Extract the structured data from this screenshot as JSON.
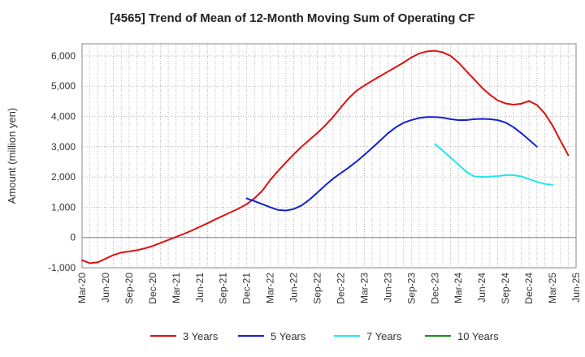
{
  "chart_data": {
    "type": "line",
    "title": "[4565]  Trend of Mean of 12-Month Moving Sum of Operating CF",
    "xlabel": "",
    "ylabel": "Amount (million yen)",
    "ylim": [
      -1000,
      6400
    ],
    "yticks": [
      -1000,
      0,
      1000,
      2000,
      3000,
      4000,
      5000,
      6000
    ],
    "ytick_labels": [
      "-1,000",
      "0",
      "1,000",
      "2,000",
      "3,000",
      "4,000",
      "5,000",
      "6,000"
    ],
    "x_start": "Mar-20",
    "x_months": 63,
    "xtick_labels": [
      "Mar-20",
      "Jun-20",
      "Sep-20",
      "Dec-20",
      "Mar-21",
      "Jun-21",
      "Sep-21",
      "Dec-21",
      "Mar-22",
      "Jun-22",
      "Sep-22",
      "Dec-22",
      "Mar-23",
      "Jun-23",
      "Sep-23",
      "Dec-23",
      "Mar-24",
      "Jun-24",
      "Sep-24",
      "Dec-24",
      "Mar-25",
      "Jun-25"
    ],
    "grid": true,
    "legend_position": "bottom",
    "series": [
      {
        "name": "3 Years",
        "color": "#dd1111",
        "start_index": 0,
        "values": [
          -750,
          -850,
          -820,
          -700,
          -580,
          -500,
          -460,
          -420,
          -360,
          -280,
          -180,
          -80,
          20,
          120,
          230,
          350,
          470,
          600,
          720,
          840,
          960,
          1100,
          1300,
          1550,
          1900,
          2200,
          2480,
          2750,
          3000,
          3230,
          3450,
          3700,
          3980,
          4300,
          4600,
          4850,
          5020,
          5180,
          5330,
          5480,
          5630,
          5780,
          5950,
          6080,
          6150,
          6170,
          6120,
          6000,
          5780,
          5500,
          5230,
          4950,
          4720,
          4530,
          4430,
          4390,
          4420,
          4510,
          4380,
          4100,
          3700,
          3200,
          2720
        ]
      },
      {
        "name": "5 Years",
        "color": "#1122cc",
        "start_index": 21,
        "values": [
          1290,
          1200,
          1100,
          1000,
          910,
          890,
          940,
          1060,
          1250,
          1480,
          1720,
          1940,
          2130,
          2310,
          2510,
          2730,
          2960,
          3200,
          3440,
          3640,
          3790,
          3880,
          3950,
          3980,
          3980,
          3960,
          3910,
          3880,
          3880,
          3910,
          3920,
          3910,
          3880,
          3800,
          3650,
          3450,
          3230,
          3000
        ]
      },
      {
        "name": "7 Years",
        "color": "#22e5ee",
        "start_index": 45,
        "values": [
          3090,
          2870,
          2640,
          2410,
          2170,
          2020,
          2000,
          2010,
          2030,
          2060,
          2060,
          2020,
          1930,
          1840,
          1770,
          1740
        ]
      },
      {
        "name": "10 Years",
        "color": "#228822",
        "start_index": 0,
        "values": []
      }
    ]
  }
}
